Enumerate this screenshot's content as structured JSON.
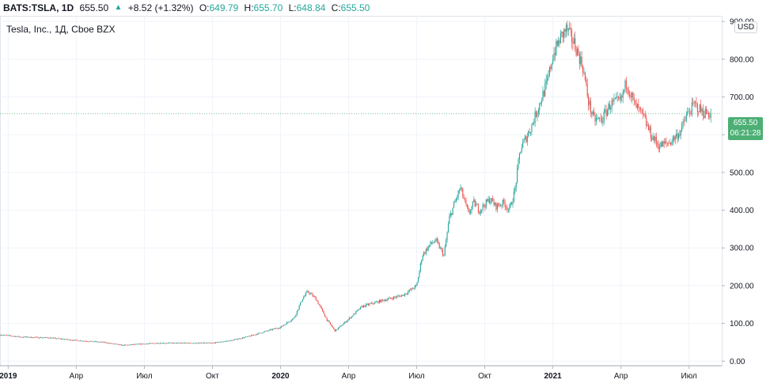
{
  "header": {
    "symbol": "BATS:TSLA, 1D",
    "last": "655.50",
    "change": "+8.52 (+1.32%)",
    "open_label": "O:",
    "open": "649.79",
    "high_label": "H:",
    "high": "655.70",
    "low_label": "L:",
    "low": "648.84",
    "close_label": "C:",
    "close": "655.50"
  },
  "legend": {
    "title": "Tesla, Inc., 1Д, Cboe BZX"
  },
  "currency": "USD",
  "price_tag": {
    "price": "655.50",
    "countdown": "06:21:28"
  },
  "colors": {
    "up": "#26a69a",
    "down": "#ef5350",
    "tag": "#4caf74",
    "grid": "#f0f3fa"
  },
  "chart_data": {
    "type": "candlestick",
    "title": "Tesla, Inc., 1Д, Cboe BZX",
    "y_ticks": [
      "0.00",
      "100.00",
      "200.00",
      "300.00",
      "400.00",
      "500.00",
      "600.00",
      "700.00",
      "800.00",
      "900.00"
    ],
    "ylim": [
      -12,
      915
    ],
    "x_ticks": [
      {
        "label": "2019",
        "bold": true,
        "t": 0.0
      },
      {
        "label": "Апр",
        "bold": false,
        "t": 0.25
      },
      {
        "label": "Июл",
        "bold": false,
        "t": 0.5
      },
      {
        "label": "Окт",
        "bold": false,
        "t": 0.75
      },
      {
        "label": "2020",
        "bold": true,
        "t": 1.0
      },
      {
        "label": "Апр",
        "bold": false,
        "t": 1.25
      },
      {
        "label": "Июл",
        "bold": false,
        "t": 1.5
      },
      {
        "label": "Окт",
        "bold": false,
        "t": 1.75
      },
      {
        "label": "2021",
        "bold": true,
        "t": 2.0
      },
      {
        "label": "Апр",
        "bold": false,
        "t": 2.25
      },
      {
        "label": "Июл",
        "bold": false,
        "t": 2.5
      }
    ],
    "xlim": [
      -0.03,
      2.62
    ],
    "price_path": [
      [
        -0.03,
        70
      ],
      [
        0.05,
        64
      ],
      [
        0.15,
        62
      ],
      [
        0.25,
        55
      ],
      [
        0.35,
        50
      ],
      [
        0.42,
        42
      ],
      [
        0.48,
        45
      ],
      [
        0.55,
        48
      ],
      [
        0.65,
        48
      ],
      [
        0.75,
        48
      ],
      [
        0.82,
        55
      ],
      [
        0.88,
        65
      ],
      [
        0.95,
        80
      ],
      [
        1.0,
        90
      ],
      [
        1.05,
        115
      ],
      [
        1.08,
        165
      ],
      [
        1.1,
        185
      ],
      [
        1.13,
        165
      ],
      [
        1.17,
        110
      ],
      [
        1.2,
        80
      ],
      [
        1.24,
        105
      ],
      [
        1.3,
        145
      ],
      [
        1.37,
        160
      ],
      [
        1.45,
        175
      ],
      [
        1.5,
        200
      ],
      [
        1.52,
        280
      ],
      [
        1.55,
        310
      ],
      [
        1.57,
        320
      ],
      [
        1.6,
        280
      ],
      [
        1.62,
        380
      ],
      [
        1.66,
        460
      ],
      [
        1.69,
        390
      ],
      [
        1.71,
        420
      ],
      [
        1.73,
        400
      ],
      [
        1.77,
        430
      ],
      [
        1.79,
        410
      ],
      [
        1.82,
        420
      ],
      [
        1.84,
        400
      ],
      [
        1.86,
        450
      ],
      [
        1.88,
        560
      ],
      [
        1.92,
        620
      ],
      [
        1.95,
        680
      ],
      [
        1.98,
        740
      ],
      [
        2.0,
        810
      ],
      [
        2.03,
        860
      ],
      [
        2.05,
        880
      ],
      [
        2.08,
        840
      ],
      [
        2.11,
        780
      ],
      [
        2.13,
        690
      ],
      [
        2.15,
        640
      ],
      [
        2.18,
        640
      ],
      [
        2.21,
        680
      ],
      [
        2.25,
        690
      ],
      [
        2.27,
        740
      ],
      [
        2.3,
        680
      ],
      [
        2.33,
        650
      ],
      [
        2.36,
        600
      ],
      [
        2.39,
        570
      ],
      [
        2.43,
        580
      ],
      [
        2.47,
        610
      ],
      [
        2.49,
        650
      ],
      [
        2.52,
        680
      ],
      [
        2.55,
        660
      ],
      [
        2.58,
        655
      ]
    ]
  }
}
